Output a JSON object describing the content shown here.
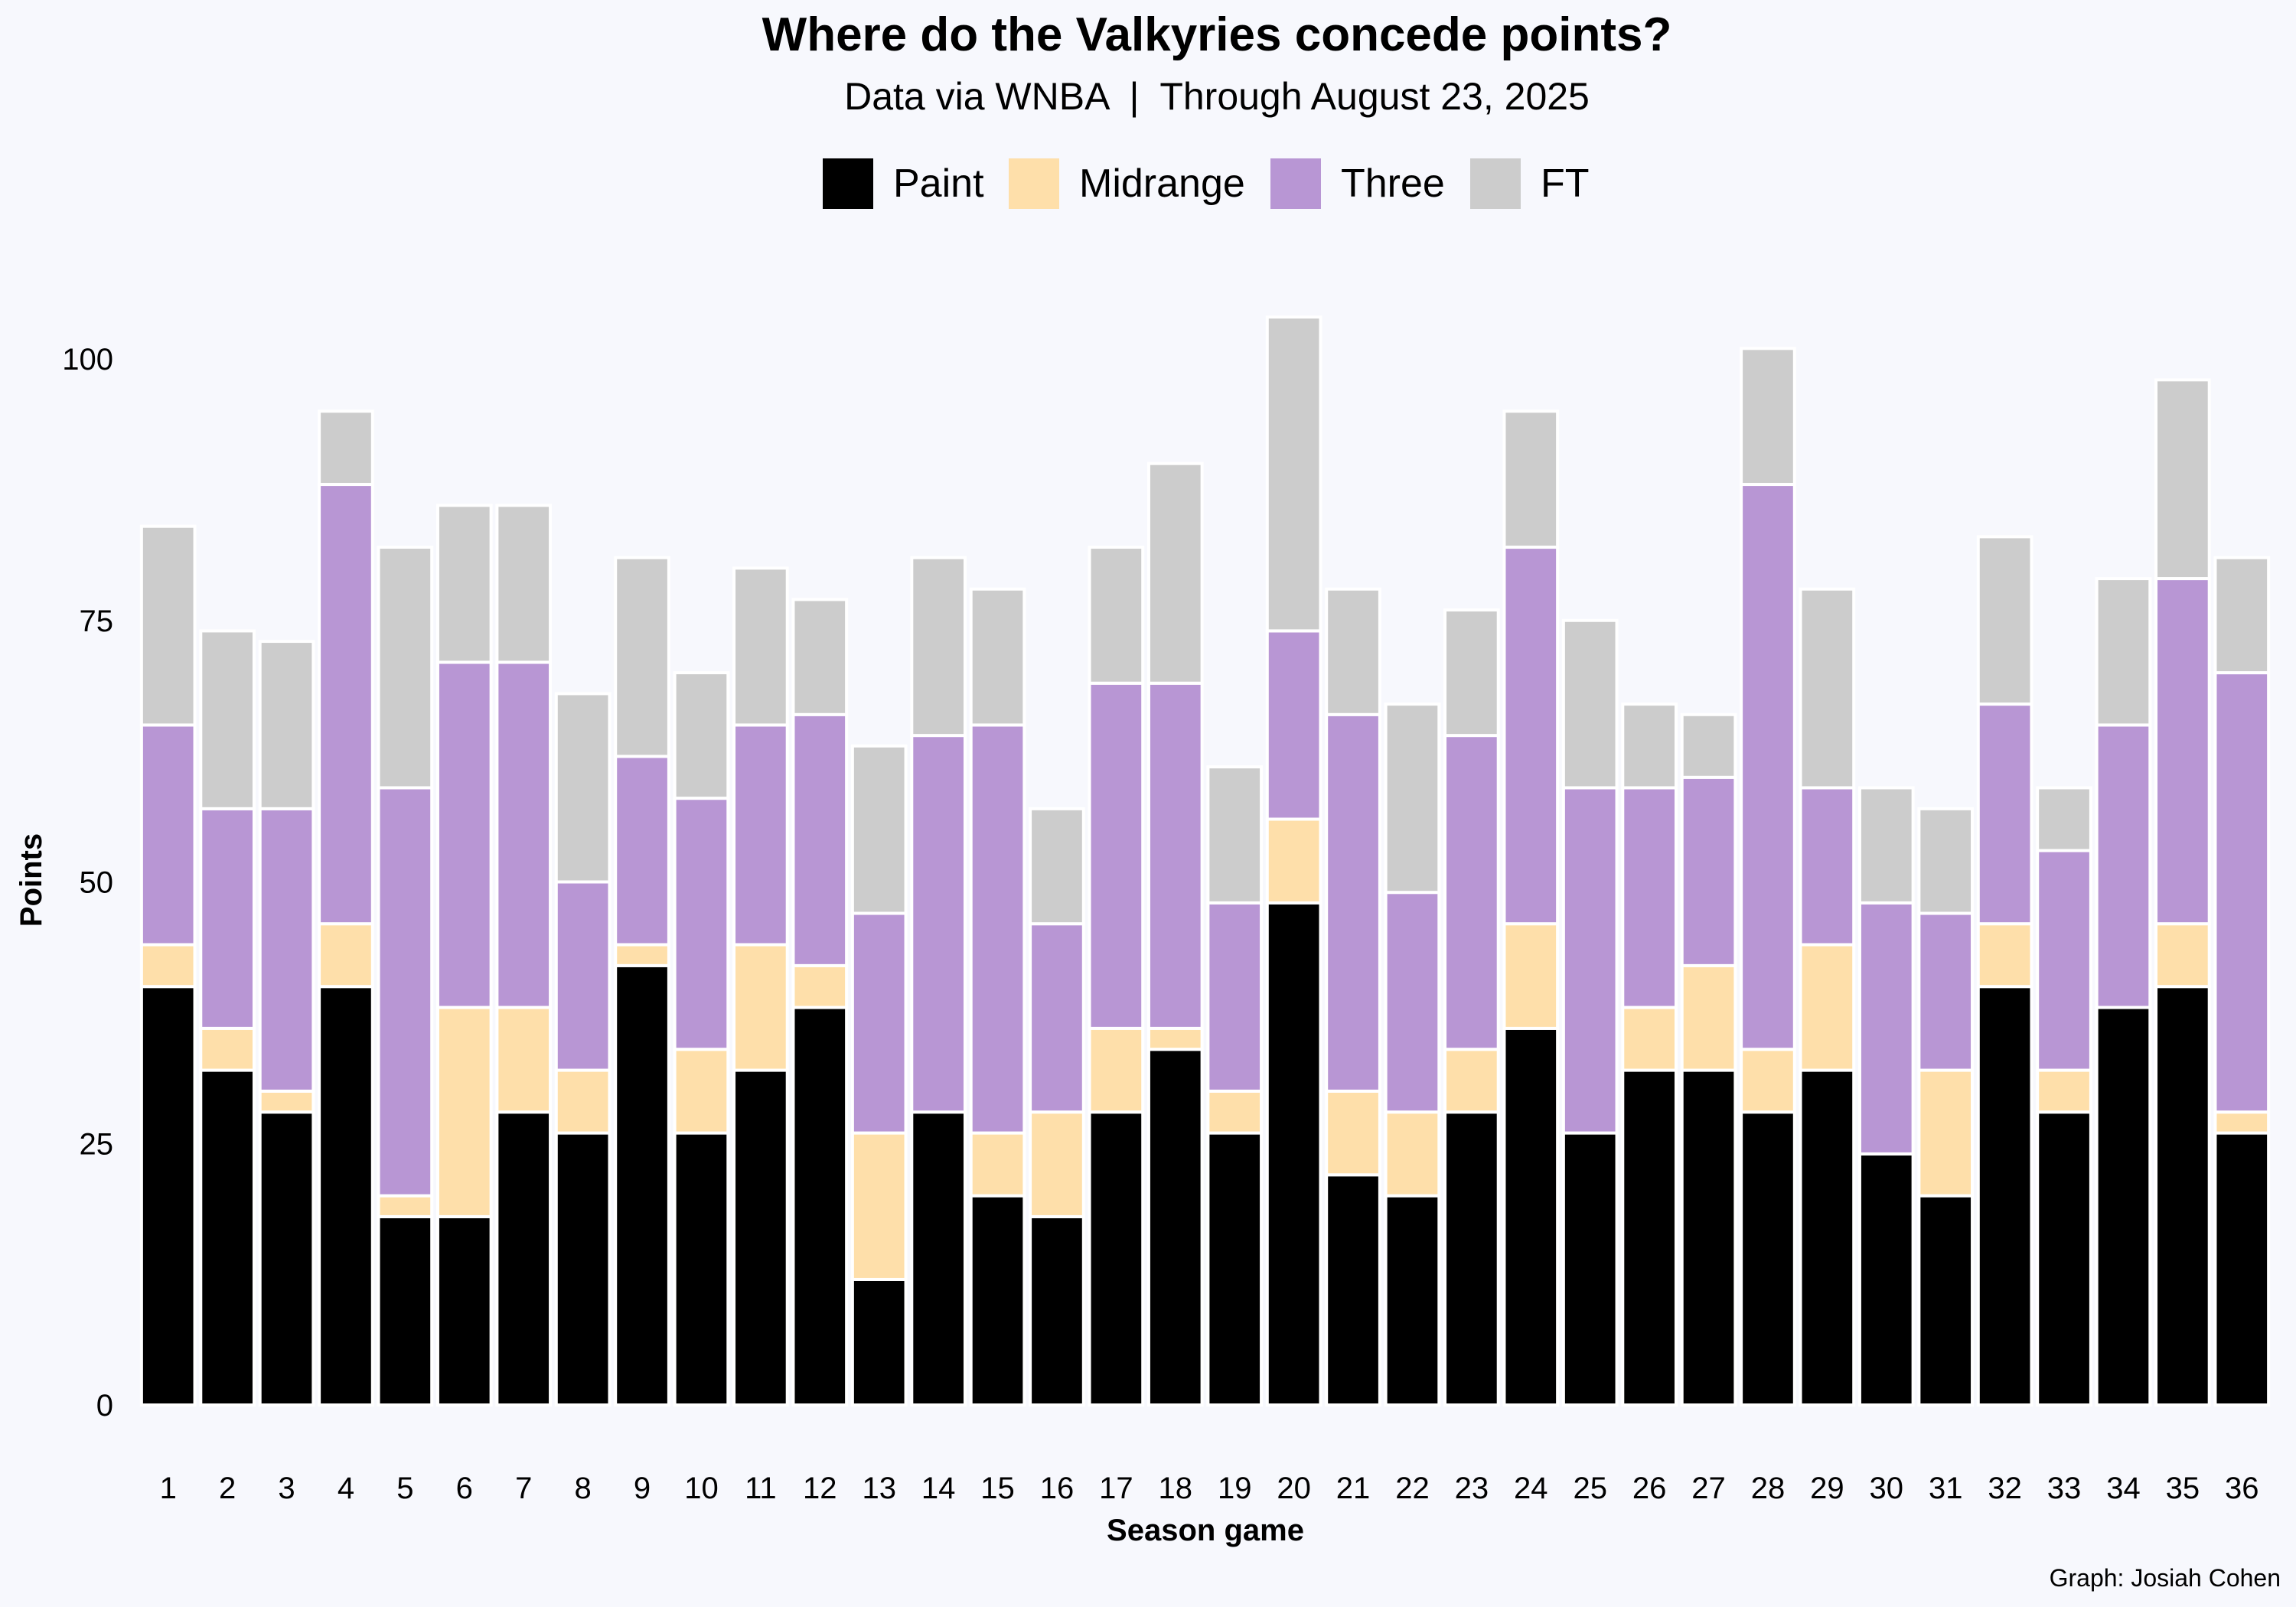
{
  "chart_data": {
    "type": "bar",
    "stacked": true,
    "title": "Where do the Valkyries concede points?",
    "subtitle": "Data via WNBA  |  Through August 23, 2025",
    "xlabel": "Season game",
    "ylabel": "Points",
    "caption": "Graph: Josiah Cohen",
    "ylim": [
      0,
      105
    ],
    "yticks": [
      0,
      25,
      50,
      75,
      100
    ],
    "grid": false,
    "legend_position": "top",
    "categories": [
      "1",
      "2",
      "3",
      "4",
      "5",
      "6",
      "7",
      "8",
      "9",
      "10",
      "11",
      "12",
      "13",
      "14",
      "15",
      "16",
      "17",
      "18",
      "19",
      "20",
      "21",
      "22",
      "23",
      "24",
      "25",
      "26",
      "27",
      "28",
      "29",
      "30",
      "31",
      "32",
      "33",
      "34",
      "35",
      "36"
    ],
    "series": [
      {
        "name": "Paint",
        "color": "#000000",
        "values": [
          40,
          32,
          28,
          40,
          18,
          18,
          28,
          26,
          42,
          26,
          32,
          38,
          12,
          28,
          20,
          18,
          28,
          34,
          26,
          48,
          22,
          20,
          28,
          36,
          26,
          32,
          32,
          28,
          32,
          24,
          20,
          40,
          28,
          38,
          40,
          26
        ]
      },
      {
        "name": "Midrange",
        "color": "#fedfaa",
        "values": [
          4,
          4,
          2,
          6,
          2,
          20,
          10,
          6,
          2,
          8,
          12,
          4,
          14,
          0,
          6,
          10,
          8,
          2,
          4,
          8,
          8,
          8,
          6,
          10,
          0,
          6,
          10,
          6,
          12,
          0,
          12,
          6,
          4,
          0,
          6,
          2
        ]
      },
      {
        "name": "Three",
        "color": "#b896d4",
        "values": [
          21,
          21,
          27,
          42,
          39,
          33,
          33,
          18,
          18,
          24,
          21,
          24,
          21,
          36,
          39,
          18,
          33,
          33,
          18,
          18,
          36,
          21,
          30,
          36,
          33,
          21,
          18,
          54,
          15,
          24,
          15,
          21,
          21,
          27,
          33,
          42
        ]
      },
      {
        "name": "FT",
        "color": "#cccccc",
        "values": [
          19,
          17,
          16,
          7,
          23,
          15,
          15,
          18,
          19,
          12,
          15,
          11,
          16,
          17,
          13,
          11,
          13,
          21,
          13,
          30,
          12,
          18,
          12,
          13,
          16,
          8,
          6,
          13,
          19,
          11,
          10,
          16,
          6,
          14,
          19,
          11
        ]
      }
    ]
  }
}
